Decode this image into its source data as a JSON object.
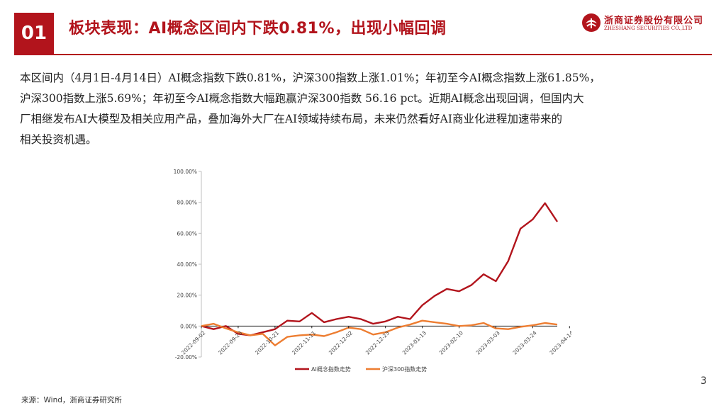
{
  "slide": {
    "badge": "01",
    "title": "板块表现：AI概念区间内下跌0.81%，出现小幅回调",
    "page_number": "3",
    "source": "来源：Wind，浙商证券研究所",
    "accent_color": "#b2141c"
  },
  "logo": {
    "name_cn": "浙商证券股份有限公司",
    "name_en": "ZHESHANG SECURITIES CO.,LTD",
    "icon": "zheshang-logo-mark-icon"
  },
  "body_lines": [
    "本区间内（4月1日-4月14日）AI概念指数下跌0.81%，沪深300指数上涨1.01%；年初至今AI概念指数上涨61.85%，",
    "沪深300指数上涨5.69%；年初至今AI概念指数大幅跑赢沪深300指数 56.16 pct。近期AI概念出现回调，但国内大",
    "厂相继发布AI大模型及相关应用产品，叠加海外大厂在AI领域持续布局，未来仍然看好AI商业化进程加速带来的",
    "相关投资机遇。"
  ],
  "chart_data": {
    "type": "line",
    "title": "",
    "xlabel": "",
    "ylabel": "",
    "ylim": [
      -20,
      100
    ],
    "y_ticks": [
      "-20.00%",
      "0.00%",
      "20.00%",
      "40.00%",
      "60.00%",
      "80.00%",
      "100.00%"
    ],
    "y_tick_values": [
      -20,
      0,
      20,
      40,
      60,
      80,
      100
    ],
    "x_tick_labels": [
      "2022-09-02",
      "2022-09-23",
      "2022-10-21",
      "2022-11-11",
      "2022-12-02",
      "2022-12-23",
      "2023-01-13",
      "2023-02-10",
      "2023-03-03",
      "2023-03-24",
      "2023-04-14"
    ],
    "x_tick_indices": [
      0,
      3,
      6,
      9,
      12,
      15,
      18,
      21,
      24,
      27,
      30
    ],
    "legend_position": "bottom",
    "grid": false,
    "series": [
      {
        "name": "AI概念指数走势",
        "color": "#b2141c",
        "values": [
          0,
          -2,
          0,
          -5,
          -6,
          -4,
          -2,
          3.5,
          3,
          8.5,
          2.5,
          4.5,
          6,
          4.5,
          1.5,
          3,
          6,
          4.5,
          13.5,
          19.5,
          24,
          22.5,
          26.5,
          33.5,
          29,
          42,
          63,
          69,
          79.5,
          67.5
        ]
      },
      {
        "name": "沪深300指数走势",
        "color": "#ed7d31",
        "values": [
          0,
          1.5,
          -1.5,
          -4,
          -6,
          -5,
          -12.5,
          -7,
          -6,
          -5.5,
          -6.5,
          -4,
          -1,
          -2,
          -5.5,
          -4,
          -1,
          1,
          3.5,
          2.5,
          1.5,
          0,
          0.5,
          2,
          -1.5,
          -2,
          -0.5,
          0.5,
          2,
          1
        ]
      }
    ]
  }
}
